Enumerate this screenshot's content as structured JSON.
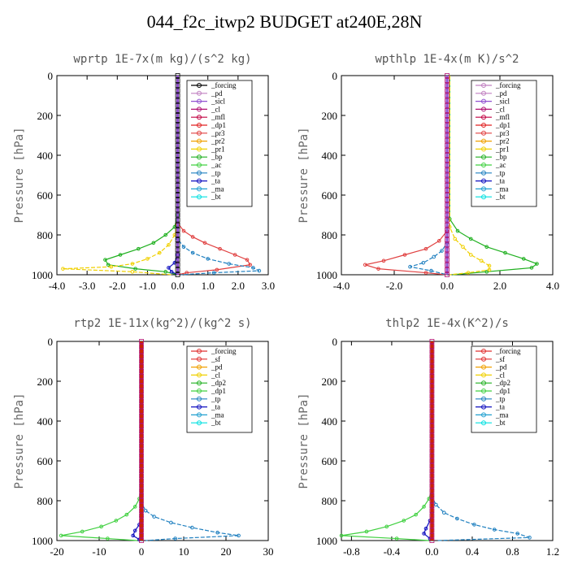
{
  "page": {
    "title": "044_f2c_itwp2  BUDGET at240E,28N"
  },
  "chart_data": [
    {
      "type": "line",
      "title": "wprtp  1E-7x(m kg)/(s^2 kg)",
      "ylabel": "Pressure [hPa]",
      "xlim": [
        -4,
        3
      ],
      "ylim": [
        1000,
        0
      ],
      "xticks": [
        -4,
        -3,
        -2,
        -1,
        0,
        1,
        2,
        3
      ],
      "xtick_labels": [
        "-4.0",
        "-3.0",
        "-2.0",
        "-1.0",
        "0.0",
        "1.0",
        "2.0",
        "3.0"
      ],
      "yticks": [
        0,
        200,
        400,
        600,
        800,
        1000
      ],
      "ytick_labels": [
        "0",
        "200",
        "400",
        "600",
        "800",
        "1000"
      ],
      "legend": [
        "_forcing",
        "_pd",
        "_sicl",
        "_cl",
        "_mfl",
        "_dp1",
        "_pr3",
        "_pr2",
        "_pr1",
        "_bp",
        "_ac",
        "_tp",
        "_ta",
        "_ma",
        "_bt"
      ],
      "legend_colors": [
        "#000000",
        "#c080c0",
        "#9050d0",
        "#b01070",
        "#c00040",
        "#e02020",
        "#e04040",
        "#f0a000",
        "#f0d000",
        "#20b020",
        "#40d040",
        "#2080c0",
        "#1010c0",
        "#20a0d0",
        "#00e0e0"
      ],
      "legend_position": "top-right",
      "series": [
        {
          "color": "#20b020",
          "y": [
            0,
            700,
            760,
            800,
            840,
            870,
            900,
            925,
            950,
            970,
            985,
            1000
          ],
          "x": [
            0,
            0,
            -0.1,
            -0.4,
            -0.8,
            -1.3,
            -1.9,
            -2.4,
            -2.3,
            -1.4,
            -0.4,
            0
          ]
        },
        {
          "color": "#f0d000",
          "y": [
            0,
            750,
            800,
            850,
            890,
            920,
            945,
            960,
            970,
            985,
            1000
          ],
          "x": [
            0,
            0,
            -0.1,
            -0.3,
            -0.6,
            -1.0,
            -1.5,
            -2.2,
            -3.8,
            -1.5,
            -0.2
          ]
        },
        {
          "color": "#e04040",
          "y": [
            0,
            740,
            780,
            810,
            840,
            870,
            900,
            925,
            950,
            975,
            990,
            1000
          ],
          "x": [
            0,
            0,
            0.2,
            0.5,
            0.9,
            1.4,
            1.9,
            2.3,
            2.4,
            1.3,
            0.3,
            0
          ]
        },
        {
          "color": "#2080c0",
          "y": [
            0,
            820,
            860,
            890,
            920,
            945,
            965,
            980,
            990,
            1000
          ],
          "x": [
            0,
            0,
            0.2,
            0.5,
            1.0,
            1.7,
            2.5,
            2.7,
            1.2,
            0.1
          ]
        },
        {
          "color": "#1010c0",
          "y": [
            0,
            900,
            940,
            965,
            985,
            1000
          ],
          "x": [
            0,
            0,
            -0.1,
            -0.3,
            -0.2,
            0
          ]
        }
      ]
    },
    {
      "type": "line",
      "title": "wpthlp  1E-4x(m K)/s^2",
      "ylabel": "Pressure [hPa]",
      "xlim": [
        -4,
        4
      ],
      "ylim": [
        1000,
        0
      ],
      "xticks": [
        -4,
        -2,
        0,
        2,
        4
      ],
      "xtick_labels": [
        "-4.0",
        "-2.0",
        "0.0",
        "2.0",
        "4.0"
      ],
      "yticks": [
        0,
        200,
        400,
        600,
        800,
        1000
      ],
      "ytick_labels": [
        "0",
        "200",
        "400",
        "600",
        "800",
        "1000"
      ],
      "legend": [
        "_forcing",
        "_pd",
        "_sicl",
        "_cl",
        "_mfl",
        "_dp1",
        "_pr3",
        "_pr2",
        "_pr1",
        "_bp",
        "_ac",
        "_tp",
        "_ta",
        "_ma",
        "_bt"
      ],
      "legend_colors": [
        "#c080c0",
        "#c080c0",
        "#9050d0",
        "#b01070",
        "#c00040",
        "#e02020",
        "#e04040",
        "#f0a000",
        "#f0d000",
        "#20b020",
        "#40d040",
        "#2080c0",
        "#1010c0",
        "#20a0d0",
        "#00e0e0"
      ],
      "legend_position": "top-right",
      "series": [
        {
          "color": "#20b020",
          "y": [
            0,
            720,
            780,
            820,
            860,
            890,
            920,
            945,
            965,
            985,
            1000
          ],
          "x": [
            0.1,
            0.1,
            0.4,
            0.9,
            1.5,
            2.2,
            2.9,
            3.4,
            3.2,
            1.5,
            0.2
          ]
        },
        {
          "color": "#f0d000",
          "y": [
            0,
            760,
            820,
            860,
            900,
            930,
            955,
            975,
            990,
            1000
          ],
          "x": [
            0.1,
            0.1,
            0.3,
            0.6,
            0.9,
            1.3,
            1.6,
            1.6,
            0.8,
            0.1
          ]
        },
        {
          "color": "#e04040",
          "y": [
            0,
            780,
            830,
            870,
            900,
            930,
            950,
            970,
            990,
            1000
          ],
          "x": [
            0,
            0,
            -0.3,
            -0.8,
            -1.6,
            -2.4,
            -3.1,
            -2.6,
            -0.8,
            0
          ]
        },
        {
          "color": "#2080c0",
          "y": [
            0,
            840,
            880,
            910,
            940,
            960,
            980,
            1000
          ],
          "x": [
            0,
            0,
            -0.2,
            -0.5,
            -0.9,
            -1.4,
            -0.6,
            0
          ]
        }
      ]
    },
    {
      "type": "line",
      "title": "rtp2  1E-11x(kg^2)/(kg^2 s)",
      "ylabel": "Pressure [hPa]",
      "xlim": [
        -20,
        30
      ],
      "ylim": [
        1000,
        0
      ],
      "xticks": [
        -20,
        -10,
        0,
        10,
        20,
        30
      ],
      "xtick_labels": [
        "-20",
        "-10",
        "0",
        "10",
        "20",
        "30"
      ],
      "yticks": [
        0,
        200,
        400,
        600,
        800,
        1000
      ],
      "ytick_labels": [
        "0",
        "200",
        "400",
        "600",
        "800",
        "1000"
      ],
      "legend": [
        "_forcing",
        "_sf",
        "_pd",
        "_cl",
        "_dp2",
        "_dp1",
        "_tp",
        "_ta",
        "_ma",
        "_bt"
      ],
      "legend_colors": [
        "#e03030",
        "#e03030",
        "#f0a000",
        "#f0d000",
        "#20b020",
        "#40d040",
        "#2080c0",
        "#1010c0",
        "#20a0d0",
        "#00e0e0"
      ],
      "legend_position": "top-right",
      "series": [
        {
          "color": "#40d040",
          "y": [
            0,
            740,
            790,
            830,
            870,
            900,
            930,
            955,
            975,
            990,
            1000
          ],
          "x": [
            0,
            0,
            -0.5,
            -1.5,
            -3.5,
            -6,
            -9.5,
            -14,
            -19,
            -8,
            -1
          ]
        },
        {
          "color": "#2080c0",
          "y": [
            0,
            810,
            850,
            880,
            910,
            935,
            960,
            975,
            990,
            1000
          ],
          "x": [
            0,
            0,
            1,
            3,
            7,
            12,
            18,
            23,
            8,
            1
          ]
        },
        {
          "color": "#1010c0",
          "y": [
            0,
            880,
            920,
            950,
            975,
            995,
            1000
          ],
          "x": [
            0,
            0,
            -0.5,
            -1.5,
            -2,
            -0.5,
            0
          ]
        }
      ]
    },
    {
      "type": "line",
      "title": "thlp2  1E-4x(K^2)/s",
      "ylabel": "Pressure [hPa]",
      "xlim": [
        -0.9,
        1.2
      ],
      "ylim": [
        1000,
        0
      ],
      "xticks": [
        -0.8,
        -0.4,
        0,
        0.4,
        0.8,
        1.2
      ],
      "xtick_labels": [
        "-0.8",
        "-0.4",
        "0.0",
        "0.4",
        "0.8",
        "1.2"
      ],
      "yticks": [
        0,
        200,
        400,
        600,
        800,
        1000
      ],
      "ytick_labels": [
        "0",
        "200",
        "400",
        "600",
        "800",
        "1000"
      ],
      "legend": [
        "_forcing",
        "_sf",
        "_pd",
        "_cl",
        "_dp2",
        "_dp1",
        "_tp",
        "_ta",
        "_ma",
        "_bt"
      ],
      "legend_colors": [
        "#e03030",
        "#e03030",
        "#f0a000",
        "#f0d000",
        "#20b020",
        "#40d040",
        "#2080c0",
        "#1010c0",
        "#20a0d0",
        "#00e0e0"
      ],
      "legend_position": "top-right",
      "series": [
        {
          "color": "#40d040",
          "y": [
            0,
            740,
            790,
            830,
            870,
            900,
            930,
            955,
            975,
            990,
            1000
          ],
          "x": [
            0,
            0,
            -0.03,
            -0.08,
            -0.16,
            -0.28,
            -0.45,
            -0.65,
            -0.9,
            -0.35,
            -0.03
          ]
        },
        {
          "color": "#2080c0",
          "y": [
            0,
            780,
            820,
            860,
            890,
            920,
            945,
            965,
            985,
            1000
          ],
          "x": [
            0,
            0,
            0.04,
            0.12,
            0.25,
            0.42,
            0.62,
            0.85,
            0.97,
            0.05
          ]
        },
        {
          "color": "#1010c0",
          "y": [
            0,
            860,
            900,
            940,
            965,
            990,
            1000
          ],
          "x": [
            0,
            0,
            -0.02,
            -0.06,
            -0.08,
            -0.02,
            0
          ]
        }
      ]
    }
  ]
}
